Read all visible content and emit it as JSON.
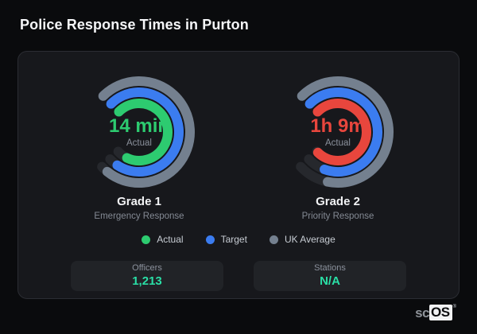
{
  "page": {
    "title": "Police Response Times in Purton"
  },
  "colors": {
    "accent_green": "#2dcb70",
    "accent_red": "#e8463d",
    "accent_blue": "#3b7cf0",
    "accent_gray": "#74808f",
    "ring_track": "#26282d",
    "stat_value": "#2adfa6",
    "panel_bg": "#17181c",
    "page_bg": "#0a0b0d"
  },
  "chart_data": {
    "type": "radial-gauge",
    "title": "Police Response Times in Purton",
    "start_angle_deg": 315,
    "track_sweep_deg": 272,
    "legend_position": "bottom-center",
    "legend": [
      {
        "label": "Actual",
        "color": "#2dcb70"
      },
      {
        "label": "Target",
        "color": "#3b7cf0"
      },
      {
        "label": "UK Average",
        "color": "#74808f"
      }
    ],
    "gauges": [
      {
        "title": "Grade 1",
        "subtitle": "Emergency Response",
        "center_value": "14 min",
        "center_label": "Actual",
        "value_color": "#2dcb70",
        "rings": [
          {
            "series": "UK Average",
            "color": "#74808f",
            "fill_fraction": 0.97
          },
          {
            "series": "Target",
            "color": "#3b7cf0",
            "fill_fraction": 0.95
          },
          {
            "series": "Actual",
            "color": "#2dcb70",
            "fill_fraction": 0.92
          }
        ]
      },
      {
        "title": "Grade 2",
        "subtitle": "Priority Response",
        "center_value": "1h 9m",
        "center_label": "Actual",
        "value_color": "#e8463d",
        "rings": [
          {
            "series": "UK Average",
            "color": "#74808f",
            "fill_fraction": 0.87
          },
          {
            "series": "Target",
            "color": "#3b7cf0",
            "fill_fraction": 0.9
          },
          {
            "series": "Actual",
            "color": "#e8463d",
            "fill_fraction": 0.99
          }
        ]
      }
    ],
    "stats": [
      {
        "label": "Officers",
        "value": "1,213"
      },
      {
        "label": "Stations",
        "value": "N/A"
      }
    ]
  },
  "brand": {
    "prefix": "sc",
    "suffix": "OS",
    "registered": "®"
  }
}
